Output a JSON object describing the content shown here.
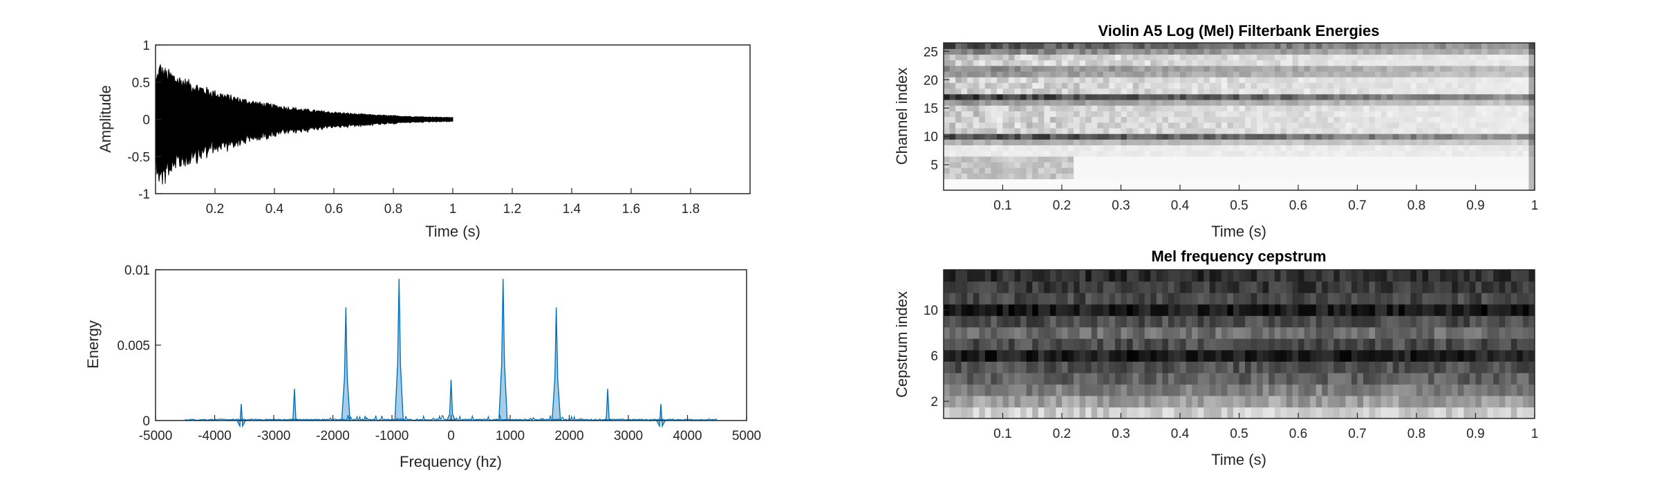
{
  "chart_data": [
    {
      "type": "line",
      "id": "waveform",
      "title": "",
      "xlabel": "Time (s)",
      "ylabel": "Amplitude",
      "xlim": [
        0,
        2
      ],
      "ylim": [
        -1,
        1
      ],
      "xticks": [
        "0.2",
        "0.4",
        "0.6",
        "0.8",
        "1",
        "1.2",
        "1.4",
        "1.6",
        "1.8"
      ],
      "yticks": [
        "1",
        "0.5",
        "0",
        "-0.5",
        "-1"
      ],
      "signal_end": 1.0,
      "peak_amplitude": 0.72,
      "color": "#000000",
      "grid": false
    },
    {
      "type": "line",
      "id": "spectrum",
      "title": "",
      "xlabel": "Frequency (hz)",
      "ylabel": "Energy",
      "xlim": [
        -5000,
        5000
      ],
      "ylim": [
        0,
        0.01
      ],
      "xticks": [
        "-5000",
        "-4000",
        "-3000",
        "-2000",
        "-1000",
        "0",
        "1000",
        "2000",
        "3000",
        "4000",
        "5000"
      ],
      "yticks": [
        "0.01",
        "0.005",
        "0"
      ],
      "peaks": [
        {
          "x": -3550,
          "y": 0.0011
        },
        {
          "x": -2650,
          "y": 0.0021
        },
        {
          "x": -1780,
          "y": 0.0075
        },
        {
          "x": -880,
          "y": 0.0094
        },
        {
          "x": 0,
          "y": 0.0027
        },
        {
          "x": 880,
          "y": 0.0094
        },
        {
          "x": 1780,
          "y": 0.0075
        },
        {
          "x": 2650,
          "y": 0.0021
        },
        {
          "x": 3550,
          "y": 0.0011
        }
      ],
      "color": "#0072BD",
      "grid": false
    },
    {
      "type": "heatmap",
      "id": "filterbank",
      "title": "Violin A5 Log (Mel) Filterbank Energies",
      "xlabel": "Time (s)",
      "ylabel": "Channel index",
      "xlim": [
        0,
        1
      ],
      "ylim": [
        0,
        26
      ],
      "xticks": [
        "0.1",
        "0.2",
        "0.3",
        "0.4",
        "0.5",
        "0.6",
        "0.7",
        "0.8",
        "0.9",
        "1"
      ],
      "yticks": [
        "25",
        "20",
        "15",
        "10",
        "5"
      ],
      "rows": 26,
      "cols": 100,
      "dark_bands": [
        {
          "channel": 26,
          "strength": 0.75
        },
        {
          "channel": 25,
          "strength": 0.55
        },
        {
          "channel": 22,
          "strength": 0.5
        },
        {
          "channel": 21,
          "strength": 0.45
        },
        {
          "channel": 17,
          "strength": 0.85
        },
        {
          "channel": 16,
          "strength": 0.45
        },
        {
          "channel": 10,
          "strength": 0.8
        },
        {
          "channel": 9,
          "strength": 0.35
        }
      ],
      "colormap": "gray"
    },
    {
      "type": "heatmap",
      "id": "cepstrum",
      "title": "Mel frequency cepstrum",
      "xlabel": "Time (s)",
      "ylabel": "Cepstrum index",
      "xlim": [
        0,
        1
      ],
      "ylim": [
        0,
        13
      ],
      "xticks": [
        "0.1",
        "0.2",
        "0.3",
        "0.4",
        "0.5",
        "0.6",
        "0.7",
        "0.8",
        "0.9",
        "1"
      ],
      "yticks": [
        "10",
        "6",
        "2"
      ],
      "rows": 13,
      "cols": 100,
      "row_brightness": [
        0.8,
        0.62,
        0.5,
        0.38,
        0.32,
        0.12,
        0.3,
        0.42,
        0.3,
        0.1,
        0.28,
        0.22,
        0.18
      ],
      "colormap": "gray"
    }
  ]
}
